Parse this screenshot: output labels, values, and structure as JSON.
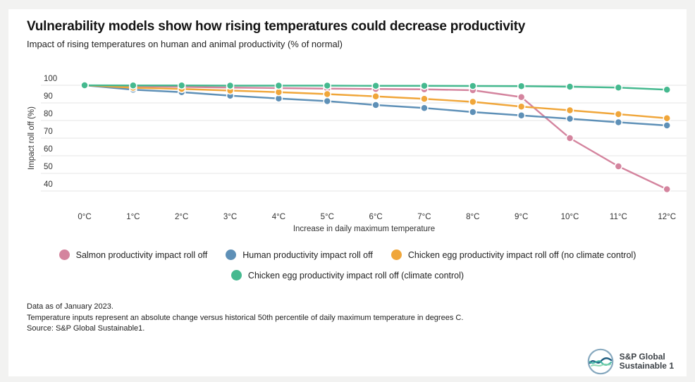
{
  "page": {
    "title": "Vulnerability models show how rising temperatures could decrease productivity",
    "subtitle": "Impact of rising temperatures on human and animal productivity (% of normal)"
  },
  "chart_data": {
    "type": "line",
    "x_categories": [
      "0°C",
      "1°C",
      "2°C",
      "3°C",
      "4°C",
      "5°C",
      "6°C",
      "7°C",
      "8°C",
      "9°C",
      "10°C",
      "11°C",
      "12°C"
    ],
    "xlabel": "Increase in daily maximum temperature",
    "ylabel": "Impact roll off (%)",
    "ylim": [
      40,
      100
    ],
    "yticks": [
      100,
      90,
      80,
      70,
      60,
      50,
      40
    ],
    "grid": true,
    "legend_position": "bottom-center",
    "legend_rows": [
      [
        0,
        1,
        2
      ],
      [
        3
      ]
    ],
    "series": [
      {
        "name": "Salmon productivity impact roll off",
        "color": "#d4849e",
        "values": [
          100,
          99.4,
          99.1,
          98.7,
          98.4,
          98.1,
          97.9,
          97.7,
          97.2,
          93.3,
          70,
          54,
          41
        ]
      },
      {
        "name": "Human productivity impact roll off",
        "color": "#5e90b7",
        "values": [
          100,
          97.5,
          96.1,
          94.1,
          92.5,
          91,
          88.8,
          87.1,
          84.8,
          82.9,
          81,
          79,
          77.2
        ]
      },
      {
        "name": "Chicken egg productivity impact roll off (no climate control)",
        "color": "#f0a63a",
        "values": [
          100,
          98.6,
          97.9,
          97,
          96.1,
          95,
          93.7,
          92.3,
          90.6,
          87.9,
          85.8,
          83.6,
          81.3
        ]
      },
      {
        "name": "Chicken egg productivity impact roll off (climate control)",
        "color": "#45b98f",
        "values": [
          100,
          99.9,
          99.9,
          99.8,
          99.8,
          99.8,
          99.7,
          99.7,
          99.6,
          99.5,
          99.2,
          98.7,
          97.5
        ]
      }
    ]
  },
  "footer": {
    "lines": [
      "Data as of January 2023.",
      "Temperature inputs represent an absolute change versus historical 50th percentile of daily maximum temperature in degrees C.",
      "Source: S&P Global Sustainable1."
    ]
  },
  "logo": {
    "line1": "S&P Global",
    "line2": "Sustainable 1"
  }
}
